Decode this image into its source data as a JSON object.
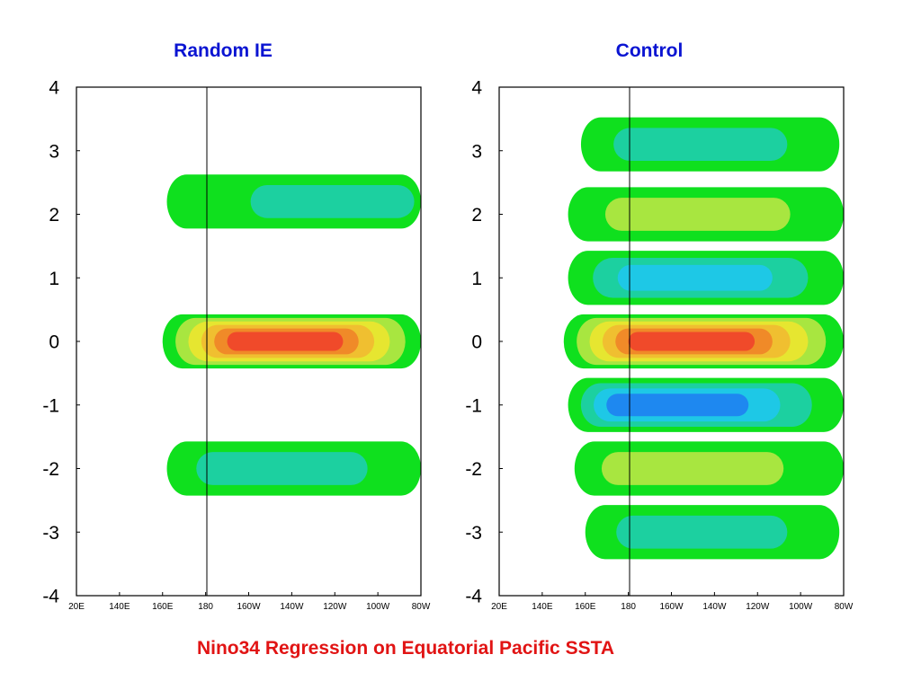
{
  "figure": {
    "caption": "Nino34 Regression on Equatorial Pacific SSTA",
    "colors": {
      "panel_title": "#0a14d2",
      "caption": "#e11414",
      "levels": [
        "#1d1dd6",
        "#1e88f0",
        "#1ec8e6",
        "#1cd0a0",
        "#0fe01e",
        "#a8e640",
        "#e6e630",
        "#f0bf30",
        "#f08a28",
        "#f04a2a",
        "#e8088c"
      ]
    }
  },
  "chart_data": [
    {
      "type": "heatmap",
      "title": "Random IE",
      "xlabel": "",
      "ylabel": "",
      "x_ticks": [
        "20E",
        "140E",
        "160E",
        "180",
        "160W",
        "140W",
        "120W",
        "100W",
        "80W"
      ],
      "y_ticks": [
        "4",
        "3",
        "2",
        "1",
        "0",
        "-1",
        "-2",
        "-3",
        "-4"
      ],
      "ylim": [
        -4,
        4
      ],
      "reference_line_x": "180",
      "grid": false,
      "legend": "none",
      "bands": [
        {
          "lat": 0,
          "lon_start": 160,
          "lon_end": 280,
          "peak": 5,
          "peak_lon": 210
        },
        {
          "lat": 2.2,
          "lon_start": 162,
          "lon_end": 280,
          "peak": -1,
          "peak_lon": 270
        },
        {
          "lat": -2,
          "lon_start": 162,
          "lon_end": 280,
          "peak": -1,
          "peak_lon": 200
        }
      ]
    },
    {
      "type": "heatmap",
      "title": "Control",
      "xlabel": "",
      "ylabel": "",
      "x_ticks": [
        "20E",
        "140E",
        "160E",
        "180",
        "160W",
        "140W",
        "120W",
        "100W",
        "80W"
      ],
      "y_ticks": [
        "4",
        "3",
        "2",
        "1",
        "0",
        "-1",
        "-2",
        "-3",
        "-4"
      ],
      "ylim": [
        -4,
        4
      ],
      "reference_line_x": "180",
      "grid": false,
      "legend": "none",
      "bands": [
        {
          "lat": 0,
          "lon_start": 150,
          "lon_end": 280,
          "peak": 5,
          "peak_lon": 200
        },
        {
          "lat": 1,
          "lon_start": 152,
          "lon_end": 280,
          "peak": -2,
          "peak_lon": 200
        },
        {
          "lat": -1,
          "lon_start": 152,
          "lon_end": 280,
          "peak": -3,
          "peak_lon": 185
        },
        {
          "lat": 2,
          "lon_start": 152,
          "lon_end": 280,
          "peak": 1,
          "peak_lon": 200
        },
        {
          "lat": -2,
          "lon_start": 155,
          "lon_end": 280,
          "peak": 1,
          "peak_lon": 190
        },
        {
          "lat": 3.1,
          "lon_start": 158,
          "lon_end": 278,
          "peak": -1,
          "peak_lon": 200
        },
        {
          "lat": -3,
          "lon_start": 160,
          "lon_end": 278,
          "peak": -1,
          "peak_lon": 200
        }
      ]
    }
  ]
}
